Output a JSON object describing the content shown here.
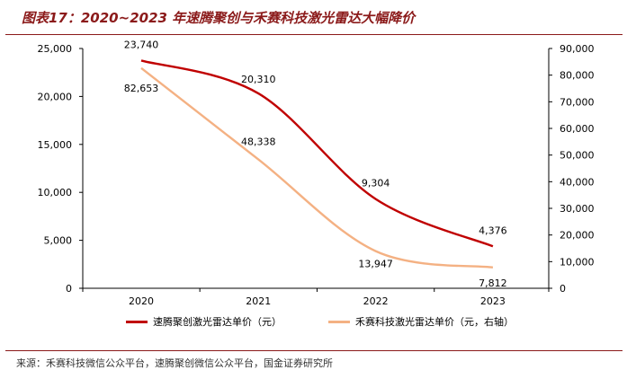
{
  "title": "图表17：2020~2023 年速腾聚创与禾赛科技激光雷达大幅降价",
  "source": "来源：禾赛科技微信公众平台，速腾聚创微信公众平台，国金证券研究所",
  "chart_data": {
    "type": "line",
    "categories": [
      "2020",
      "2021",
      "2022",
      "2023"
    ],
    "series": [
      {
        "name": "速腾聚创激光雷达单价（元）",
        "axis": "left",
        "color": "#c00000",
        "values": [
          23740,
          20310,
          9304,
          4376
        ],
        "labels": [
          "23,740",
          "20,310",
          "9,304",
          "4,376"
        ]
      },
      {
        "name": "禾赛科技激光雷达单价（元，右轴）",
        "axis": "right",
        "color": "#f4b183",
        "values": [
          82653,
          48338,
          13947,
          7812
        ],
        "labels": [
          "82,653",
          "48,338",
          "13,947",
          "7,812"
        ]
      }
    ],
    "y_left": {
      "min": 0,
      "max": 25000,
      "ticks": [
        0,
        5000,
        10000,
        15000,
        20000,
        25000
      ],
      "tick_labels": [
        "0",
        "5,000",
        "10,000",
        "15,000",
        "20,000",
        "25,000"
      ]
    },
    "y_right": {
      "min": 0,
      "max": 90000,
      "ticks": [
        0,
        10000,
        20000,
        30000,
        40000,
        50000,
        60000,
        70000,
        80000,
        90000
      ],
      "tick_labels": [
        "0",
        "10,000",
        "20,000",
        "30,000",
        "40,000",
        "50,000",
        "60,000",
        "70,000",
        "80,000",
        "90,000"
      ]
    },
    "grid": false,
    "legend_position": "bottom"
  }
}
